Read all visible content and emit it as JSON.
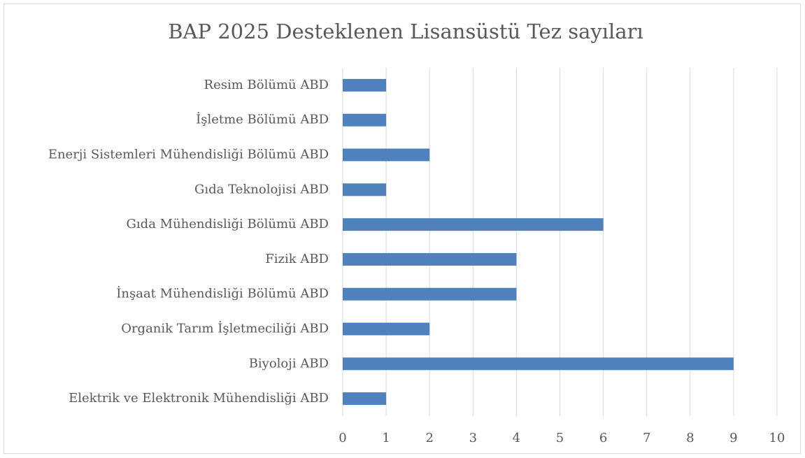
{
  "chart_data": {
    "type": "barh",
    "title": "BAP 2025 Desteklenen Lisansüstü Tez sayıları",
    "categories": [
      "Resim Bölümü ABD",
      "İşletme Bölümü ABD",
      "Enerji Sistemleri Mühendisliği Bölümü ABD",
      "Gıda Teknolojisi ABD",
      "Gıda Mühendisliği Bölümü ABD",
      "Fizik ABD",
      "İnşaat Mühendisliği Bölümü ABD",
      "Organik Tarım İşletmeciliği ABD",
      "Biyoloji ABD",
      "Elektrik ve Elektronik Mühendisliği ABD"
    ],
    "values": [
      1,
      1,
      2,
      1,
      6,
      4,
      4,
      2,
      9,
      1
    ],
    "color": "#4f81bd",
    "xlim": [
      0,
      10
    ],
    "xticks": [
      0,
      1,
      2,
      3,
      4,
      5,
      6,
      7,
      8,
      9,
      10
    ],
    "grid": true
  }
}
